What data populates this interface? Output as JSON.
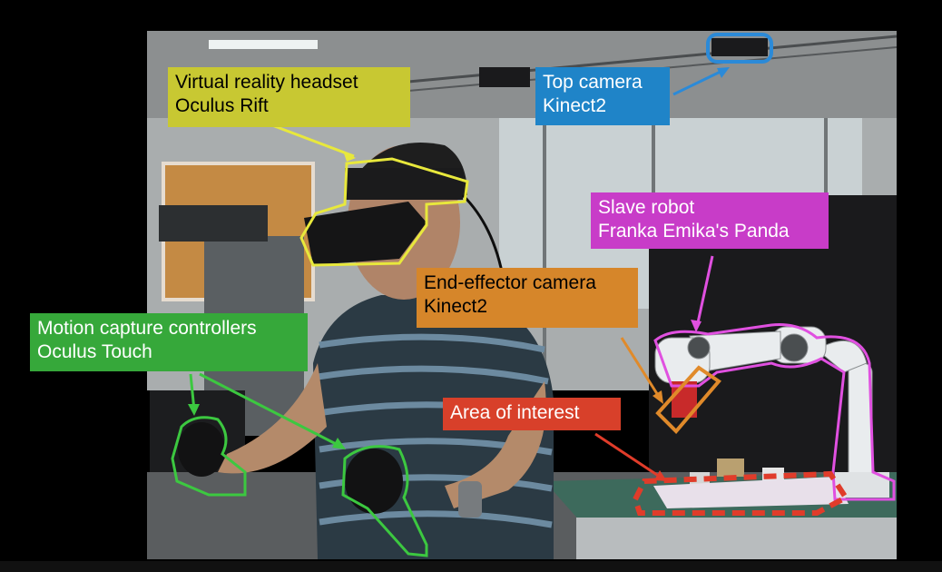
{
  "labels": {
    "vr_headset": {
      "line1": "Virtual reality headset",
      "line2": "Oculus Rift",
      "bg": "#c8c832",
      "fg": "#000000"
    },
    "top_camera": {
      "line1": "Top camera",
      "line2": "Kinect2",
      "bg": "#1f84c8",
      "fg": "#ffffff"
    },
    "slave_robot": {
      "line1": "Slave robot",
      "line2": "Franka Emika's Panda",
      "bg": "#c83cc8",
      "fg": "#ffffff"
    },
    "end_effector_camera": {
      "line1": "End-effector camera",
      "line2": "Kinect2",
      "bg": "#d6862a",
      "fg": "#000000"
    },
    "motion_capture": {
      "line1": "Motion capture controllers",
      "line2": "Oculus Touch",
      "bg": "#36a83a",
      "fg": "#ffffff"
    },
    "area_of_interest": {
      "line1": "Area of interest",
      "bg": "#d8402a",
      "fg": "#ffffff"
    }
  },
  "outline_colors": {
    "vr_headset": "#e8e83c",
    "top_camera": "#2b8ad8",
    "slave_robot": "#e050e0",
    "end_effector_camera": "#e08a2a",
    "motion_capture": "#3cc840",
    "area_of_interest": "#e03c2a"
  }
}
